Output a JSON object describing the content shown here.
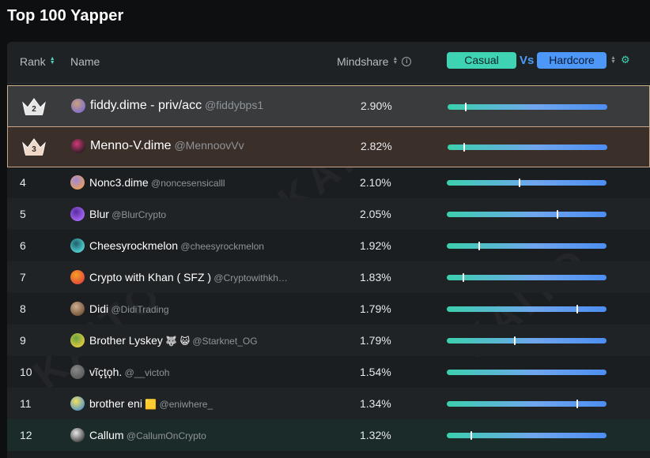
{
  "page": {
    "title": "Top 100 Yapper"
  },
  "header": {
    "rank_label": "Rank",
    "name_label": "Name",
    "mindshare_label": "Mindshare",
    "casual_label": "Casual",
    "vs_label": "Vs",
    "hardcore_label": "Hardcore"
  },
  "watermark": "KAITO",
  "colors": {
    "casual": "#3ed3b2",
    "hardcore": "#4c97f7",
    "rank2_border": "#c9b28a",
    "rank3_border": "#c9a68a"
  },
  "rows": [
    {
      "rank": "2",
      "name": "fiddy.dime - priv/acc",
      "handle": "@fiddybps1",
      "mindshare": "2.90%",
      "casual_ratio": 0.11,
      "emoji": ""
    },
    {
      "rank": "3",
      "name": "Menno-V.dime",
      "handle": "@MennoovVv",
      "mindshare": "2.82%",
      "casual_ratio": 0.1,
      "emoji": ""
    },
    {
      "rank": "4",
      "name": "Nonc3.dime",
      "handle": "@noncesensicalll",
      "mindshare": "2.10%",
      "casual_ratio": 0.45,
      "emoji": ""
    },
    {
      "rank": "5",
      "name": "Blur",
      "handle": "@BlurCrypto",
      "mindshare": "2.05%",
      "casual_ratio": 0.69,
      "emoji": ""
    },
    {
      "rank": "6",
      "name": "Cheesyrockmelon",
      "handle": "@cheesyrockmelon",
      "mindshare": "1.92%",
      "casual_ratio": 0.2,
      "emoji": ""
    },
    {
      "rank": "7",
      "name": "Crypto with Khan ( SFZ )",
      "handle": "@Cryptowithkh…",
      "mindshare": "1.83%",
      "casual_ratio": 0.1,
      "emoji": ""
    },
    {
      "rank": "8",
      "name": "Didi",
      "handle": "@DidiTrading",
      "mindshare": "1.79%",
      "casual_ratio": 0.81,
      "emoji": ""
    },
    {
      "rank": "9",
      "name": "Brother Lyskey",
      "handle": "@Starknet_OG",
      "mindshare": "1.79%",
      "casual_ratio": 0.42,
      "emoji": "🐺 😺"
    },
    {
      "rank": "10",
      "name": "vĩçţǫh.",
      "handle": "@__victoh",
      "mindshare": "1.54%",
      "casual_ratio": null,
      "emoji": ""
    },
    {
      "rank": "11",
      "name": "brother eni",
      "handle": "@eniwhere_",
      "mindshare": "1.34%",
      "casual_ratio": 0.81,
      "emoji": "🟨"
    },
    {
      "rank": "12",
      "name": "Callum",
      "handle": "@CallumOnCrypto",
      "mindshare": "1.32%",
      "casual_ratio": 0.15,
      "emoji": ""
    }
  ]
}
